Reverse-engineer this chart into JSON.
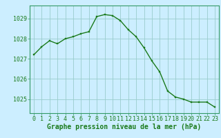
{
  "x": [
    0,
    1,
    2,
    3,
    4,
    5,
    6,
    7,
    8,
    9,
    10,
    11,
    12,
    13,
    14,
    15,
    16,
    17,
    18,
    19,
    20,
    21,
    22,
    23
  ],
  "y": [
    1027.2,
    1027.6,
    1027.9,
    1027.75,
    1028.0,
    1028.1,
    1028.25,
    1028.35,
    1029.1,
    1029.2,
    1029.15,
    1028.9,
    1028.45,
    1028.1,
    1027.55,
    1026.9,
    1026.35,
    1025.4,
    1025.1,
    1025.0,
    1024.85,
    1024.85,
    1024.85,
    1024.6
  ],
  "line_color": "#1a7a1a",
  "marker_color": "#1a7a1a",
  "background_color": "#cceeff",
  "grid_color": "#99cccc",
  "ylabel_ticks": [
    1025,
    1026,
    1027,
    1028,
    1029
  ],
  "xlabel": "Graphe pression niveau de la mer (hPa)",
  "ylim": [
    1024.3,
    1029.65
  ],
  "xlim": [
    -0.5,
    23.5
  ],
  "xlabel_fontsize": 7,
  "tick_fontsize": 6,
  "border_color": "#339966"
}
